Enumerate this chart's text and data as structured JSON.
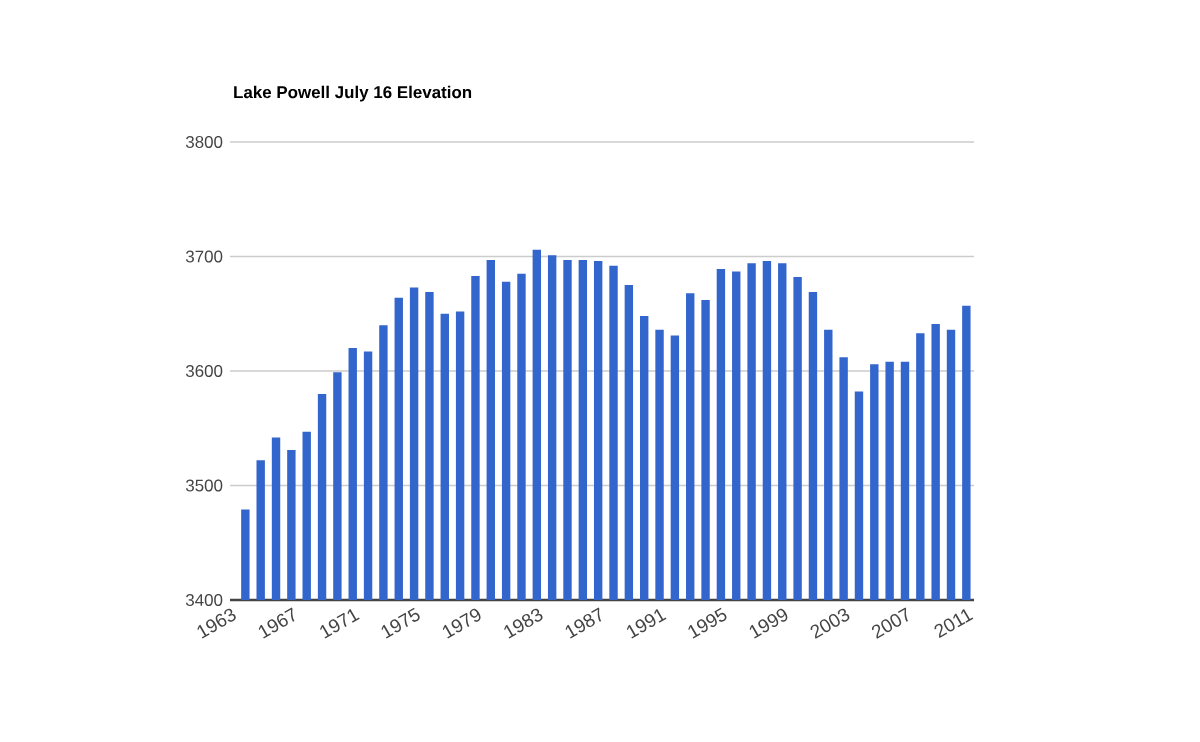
{
  "chart_data": {
    "type": "bar",
    "title": "Lake Powell July 16 Elevation",
    "x": [
      1964,
      1965,
      1966,
      1967,
      1968,
      1969,
      1970,
      1971,
      1972,
      1973,
      1974,
      1975,
      1976,
      1977,
      1978,
      1979,
      1980,
      1981,
      1982,
      1983,
      1984,
      1985,
      1986,
      1987,
      1988,
      1989,
      1990,
      1991,
      1992,
      1993,
      1994,
      1995,
      1996,
      1997,
      1998,
      1999,
      2000,
      2001,
      2002,
      2003,
      2004,
      2005,
      2006,
      2007,
      2008,
      2009,
      2010,
      2011
    ],
    "values": [
      3479,
      3522,
      3542,
      3531,
      3547,
      3580,
      3599,
      3620,
      3617,
      3640,
      3664,
      3673,
      3669,
      3650,
      3652,
      3683,
      3697,
      3678,
      3685,
      3706,
      3701,
      3697,
      3697,
      3696,
      3692,
      3675,
      3648,
      3636,
      3631,
      3668,
      3662,
      3689,
      3687,
      3694,
      3696,
      3694,
      3682,
      3669,
      3636,
      3612,
      3582,
      3606,
      3608,
      3608,
      3633,
      3641,
      3636,
      3657
    ],
    "color": "#3366cc",
    "xlim": [
      1963,
      2011.5
    ],
    "xticks": [
      1963,
      1967,
      1971,
      1975,
      1979,
      1983,
      1987,
      1991,
      1995,
      1999,
      2003,
      2007,
      2011
    ],
    "ylim": [
      3400,
      3800
    ],
    "yticks": [
      3400,
      3500,
      3600,
      3700,
      3800
    ],
    "grid": "y"
  }
}
